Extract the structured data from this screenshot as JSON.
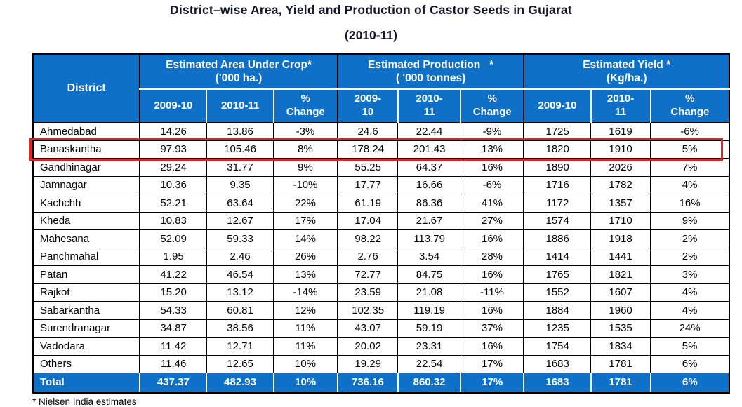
{
  "title": {
    "line1": "District–wise Area, Yield and Production of Castor Seeds in Gujarat",
    "line2": "(2010-11)"
  },
  "footnote": "* Nielsen India estimates",
  "colors": {
    "header_blue": "#0f70c8",
    "highlight_red": "#ee2019",
    "header_text": "#ffffff",
    "body_text": "#000000",
    "title_text": "#15152b"
  },
  "table": {
    "district_header": "District",
    "groups": [
      {
        "title": "Estimated Area Under Crop*",
        "subtitle": "('000 ha.)",
        "cols": [
          "2009-10",
          "2010-11",
          "%\nChange"
        ]
      },
      {
        "title": "Estimated Production   *",
        "subtitle": "( '000 tonnes)",
        "cols": [
          "2009-\n10",
          "2010-\n11",
          "%\nChange"
        ]
      },
      {
        "title": "Estimated Yield *",
        "subtitle": "(Kg/ha.)",
        "cols": [
          "2009-10",
          "2010-\n11",
          "%\nChange"
        ]
      }
    ],
    "rows": [
      {
        "district": "Ahmedabad",
        "highlight": false,
        "values": [
          "14.26",
          "13.86",
          "-3%",
          "24.6",
          "22.44",
          "-9%",
          "1725",
          "1619",
          "-6%"
        ]
      },
      {
        "district": "Banaskantha",
        "highlight": true,
        "values": [
          "97.93",
          "105.46",
          "8%",
          "178.24",
          "201.43",
          "13%",
          "1820",
          "1910",
          "5%"
        ]
      },
      {
        "district": "Gandhinagar",
        "highlight": false,
        "values": [
          "29.24",
          "31.77",
          "9%",
          "55.25",
          "64.37",
          "16%",
          "1890",
          "2026",
          "7%"
        ]
      },
      {
        "district": "Jamnagar",
        "highlight": false,
        "values": [
          "10.36",
          "9.35",
          "-10%",
          "17.77",
          "16.66",
          "-6%",
          "1716",
          "1782",
          "4%"
        ]
      },
      {
        "district": "Kachchh",
        "highlight": false,
        "values": [
          "52.21",
          "63.64",
          "22%",
          "61.19",
          "86.36",
          "41%",
          "1172",
          "1357",
          "16%"
        ]
      },
      {
        "district": "Kheda",
        "highlight": false,
        "values": [
          "10.83",
          "12.67",
          "17%",
          "17.04",
          "21.67",
          "27%",
          "1574",
          "1710",
          "9%"
        ]
      },
      {
        "district": "Mahesana",
        "highlight": false,
        "values": [
          "52.09",
          "59.33",
          "14%",
          "98.22",
          "113.79",
          "16%",
          "1886",
          "1918",
          "2%"
        ]
      },
      {
        "district": "Panchmahal",
        "highlight": false,
        "values": [
          "1.95",
          "2.46",
          "26%",
          "2.76",
          "3.54",
          "28%",
          "1414",
          "1441",
          "2%"
        ]
      },
      {
        "district": "Patan",
        "highlight": false,
        "values": [
          "41.22",
          "46.54",
          "13%",
          "72.77",
          "84.75",
          "16%",
          "1765",
          "1821",
          "3%"
        ]
      },
      {
        "district": "Rajkot",
        "highlight": false,
        "values": [
          "15.20",
          "13.12",
          "-14%",
          "23.59",
          "21.08",
          "-11%",
          "1552",
          "1607",
          "4%"
        ]
      },
      {
        "district": "Sabarkantha",
        "highlight": false,
        "values": [
          "54.33",
          "60.81",
          "12%",
          "102.35",
          "119.19",
          "16%",
          "1884",
          "1960",
          "4%"
        ]
      },
      {
        "district": "Surendranagar",
        "highlight": false,
        "values": [
          "34.87",
          "38.56",
          "11%",
          "43.07",
          "59.19",
          "37%",
          "1235",
          "1535",
          "24%"
        ]
      },
      {
        "district": "Vadodara",
        "highlight": false,
        "values": [
          "11.42",
          "12.71",
          "11%",
          "20.02",
          "23.31",
          "16%",
          "1754",
          "1834",
          "5%"
        ]
      },
      {
        "district": "Others",
        "highlight": false,
        "values": [
          "11.46",
          "12.65",
          "10%",
          "19.29",
          "22.54",
          "17%",
          "1683",
          "1781",
          "6%"
        ]
      }
    ],
    "total": {
      "label": "Total",
      "values": [
        "437.37",
        "482.93",
        "10%",
        "736.16",
        "860.32",
        "17%",
        "1683",
        "1781",
        "6%"
      ]
    }
  },
  "chart_data": {
    "type": "table",
    "title": "District–wise Area, Yield and Production of Castor Seeds in Gujarat (2010-11)",
    "columns": [
      "District",
      "Area 2009-10 ('000 ha.)",
      "Area 2010-11 ('000 ha.)",
      "Area % Change",
      "Production 2009-10 ('000 tonnes)",
      "Production 2010-11 ('000 tonnes)",
      "Production % Change",
      "Yield 2009-10 (Kg/ha.)",
      "Yield 2010-11 (Kg/ha.)",
      "Yield % Change"
    ],
    "rows": [
      [
        "Ahmedabad",
        14.26,
        13.86,
        "-3%",
        24.6,
        22.44,
        "-9%",
        1725,
        1619,
        "-6%"
      ],
      [
        "Banaskantha",
        97.93,
        105.46,
        "8%",
        178.24,
        201.43,
        "13%",
        1820,
        1910,
        "5%"
      ],
      [
        "Gandhinagar",
        29.24,
        31.77,
        "9%",
        55.25,
        64.37,
        "16%",
        1890,
        2026,
        "7%"
      ],
      [
        "Jamnagar",
        10.36,
        9.35,
        "-10%",
        17.77,
        16.66,
        "-6%",
        1716,
        1782,
        "4%"
      ],
      [
        "Kachchh",
        52.21,
        63.64,
        "22%",
        61.19,
        86.36,
        "41%",
        1172,
        1357,
        "16%"
      ],
      [
        "Kheda",
        10.83,
        12.67,
        "17%",
        17.04,
        21.67,
        "27%",
        1574,
        1710,
        "9%"
      ],
      [
        "Mahesana",
        52.09,
        59.33,
        "14%",
        98.22,
        113.79,
        "16%",
        1886,
        1918,
        "2%"
      ],
      [
        "Panchmahal",
        1.95,
        2.46,
        "26%",
        2.76,
        3.54,
        "28%",
        1414,
        1441,
        "2%"
      ],
      [
        "Patan",
        41.22,
        46.54,
        "13%",
        72.77,
        84.75,
        "16%",
        1765,
        1821,
        "3%"
      ],
      [
        "Rajkot",
        15.2,
        13.12,
        "-14%",
        23.59,
        21.08,
        "-11%",
        1552,
        1607,
        "4%"
      ],
      [
        "Sabarkantha",
        54.33,
        60.81,
        "12%",
        102.35,
        119.19,
        "16%",
        1884,
        1960,
        "4%"
      ],
      [
        "Surendranagar",
        34.87,
        38.56,
        "11%",
        43.07,
        59.19,
        "37%",
        1235,
        1535,
        "24%"
      ],
      [
        "Vadodara",
        11.42,
        12.71,
        "11%",
        20.02,
        23.31,
        "16%",
        1754,
        1834,
        "5%"
      ],
      [
        "Others",
        11.46,
        12.65,
        "10%",
        19.29,
        22.54,
        "17%",
        1683,
        1781,
        "6%"
      ],
      [
        "Total",
        437.37,
        482.93,
        "10%",
        736.16,
        860.32,
        "17%",
        1683,
        1781,
        "6%"
      ]
    ],
    "highlighted_row": "Banaskantha",
    "footnote": "* Nielsen India estimates"
  }
}
